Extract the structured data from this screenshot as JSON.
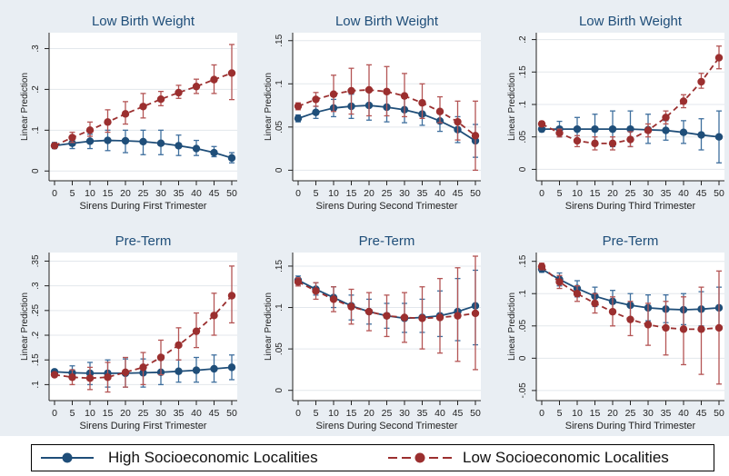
{
  "colors": {
    "high": "#1f4e79",
    "low": "#9b2f2f",
    "title": "#1f4e79",
    "background": "#e9eef3",
    "ci_high": "#3f6f9e",
    "ci_low": "#b45555"
  },
  "legend": {
    "high_label": "High Socioeconomic Localities",
    "low_label": "Low Socioeconomic Localities"
  },
  "chart_data": [
    {
      "type": "line",
      "title": "Low Birth Weight",
      "xlabel": "Sirens During First Trimester",
      "ylabel": "Linear Prediction",
      "x": [
        0,
        5,
        10,
        15,
        20,
        25,
        30,
        35,
        40,
        45,
        50
      ],
      "ylim": [
        -0.015,
        0.33
      ],
      "yticks": [
        0,
        0.1,
        0.2,
        0.3
      ],
      "ytick_labels": [
        "0",
        ".1",
        ".2",
        ".3"
      ],
      "series": [
        {
          "name": "High Socioeconomic Localities",
          "values": [
            0.062,
            0.068,
            0.073,
            0.075,
            0.074,
            0.072,
            0.068,
            0.062,
            0.055,
            0.045,
            0.032
          ],
          "lower": [
            0.055,
            0.055,
            0.055,
            0.05,
            0.045,
            0.04,
            0.04,
            0.038,
            0.038,
            0.035,
            0.02
          ],
          "upper": [
            0.07,
            0.08,
            0.09,
            0.1,
            0.1,
            0.1,
            0.1,
            0.088,
            0.075,
            0.06,
            0.045
          ]
        },
        {
          "name": "Low Socioeconomic Localities",
          "values": [
            0.062,
            0.082,
            0.1,
            0.12,
            0.14,
            0.158,
            0.176,
            0.192,
            0.207,
            0.224,
            0.24
          ],
          "lower": [
            0.058,
            0.07,
            0.085,
            0.095,
            0.115,
            0.13,
            0.16,
            0.178,
            0.19,
            0.19,
            0.175
          ],
          "upper": [
            0.066,
            0.095,
            0.12,
            0.15,
            0.17,
            0.19,
            0.195,
            0.21,
            0.225,
            0.26,
            0.31
          ]
        }
      ]
    },
    {
      "type": "line",
      "title": "Low Birth Weight",
      "xlabel": "Sirens During Second Trimester",
      "ylabel": "Linear Prediction",
      "x": [
        0,
        5,
        10,
        15,
        20,
        25,
        30,
        35,
        40,
        45,
        50
      ],
      "ylim": [
        -0.008,
        0.155
      ],
      "yticks": [
        0,
        0.05,
        0.1,
        0.15
      ],
      "ytick_labels": [
        "0",
        ".05",
        ".1",
        ".15"
      ],
      "series": [
        {
          "name": "High Socioeconomic Localities",
          "values": [
            0.06,
            0.067,
            0.072,
            0.074,
            0.075,
            0.073,
            0.07,
            0.065,
            0.057,
            0.047,
            0.034
          ],
          "lower": [
            0.056,
            0.06,
            0.062,
            0.06,
            0.058,
            0.056,
            0.055,
            0.052,
            0.045,
            0.032,
            0.015
          ],
          "upper": [
            0.064,
            0.074,
            0.082,
            0.088,
            0.092,
            0.09,
            0.085,
            0.078,
            0.068,
            0.062,
            0.053
          ]
        },
        {
          "name": "Low Socioeconomic Localities",
          "values": [
            0.074,
            0.082,
            0.088,
            0.092,
            0.093,
            0.091,
            0.086,
            0.078,
            0.068,
            0.056,
            0.04
          ],
          "lower": [
            0.07,
            0.074,
            0.068,
            0.065,
            0.063,
            0.063,
            0.062,
            0.06,
            0.055,
            0.035,
            0.0
          ],
          "upper": [
            0.078,
            0.09,
            0.11,
            0.118,
            0.122,
            0.12,
            0.112,
            0.1,
            0.085,
            0.08,
            0.08
          ]
        }
      ]
    },
    {
      "type": "line",
      "title": "Low Birth Weight",
      "xlabel": "Sirens During Third Trimester",
      "ylabel": "Linear Prediction",
      "x": [
        0,
        5,
        10,
        15,
        20,
        25,
        30,
        35,
        40,
        45,
        50
      ],
      "ylim": [
        -0.012,
        0.205
      ],
      "yticks": [
        0,
        0.05,
        0.1,
        0.15,
        0.2
      ],
      "ytick_labels": [
        "0",
        ".05",
        ".1",
        ".15",
        ".2"
      ],
      "series": [
        {
          "name": "High Socioeconomic Localities",
          "values": [
            0.062,
            0.062,
            0.062,
            0.062,
            0.062,
            0.062,
            0.061,
            0.06,
            0.057,
            0.053,
            0.05
          ],
          "lower": [
            0.058,
            0.05,
            0.045,
            0.04,
            0.035,
            0.035,
            0.04,
            0.045,
            0.04,
            0.03,
            0.01
          ],
          "upper": [
            0.066,
            0.074,
            0.08,
            0.085,
            0.09,
            0.09,
            0.085,
            0.075,
            0.075,
            0.078,
            0.09
          ]
        },
        {
          "name": "Low Socioeconomic Localities",
          "values": [
            0.07,
            0.056,
            0.044,
            0.04,
            0.04,
            0.046,
            0.06,
            0.08,
            0.105,
            0.135,
            0.172
          ],
          "lower": [
            0.066,
            0.05,
            0.035,
            0.03,
            0.03,
            0.035,
            0.05,
            0.07,
            0.095,
            0.125,
            0.155
          ],
          "upper": [
            0.074,
            0.062,
            0.052,
            0.05,
            0.05,
            0.058,
            0.07,
            0.09,
            0.115,
            0.148,
            0.19
          ]
        }
      ]
    },
    {
      "type": "line",
      "title": "Pre-Term",
      "xlabel": "Sirens During First Trimester",
      "ylabel": "Linear Prediction",
      "x": [
        0,
        5,
        10,
        15,
        20,
        25,
        30,
        35,
        40,
        45,
        50
      ],
      "ylim": [
        0.075,
        0.36
      ],
      "yticks": [
        0.1,
        0.15,
        0.2,
        0.25,
        0.3,
        0.35
      ],
      "ytick_labels": [
        ".1",
        ".15",
        ".2",
        ".25",
        ".3",
        ".35"
      ],
      "series": [
        {
          "name": "High Socioeconomic Localities",
          "values": [
            0.126,
            0.124,
            0.123,
            0.123,
            0.123,
            0.124,
            0.125,
            0.127,
            0.129,
            0.132,
            0.135
          ],
          "lower": [
            0.122,
            0.11,
            0.1,
            0.095,
            0.095,
            0.095,
            0.1,
            0.105,
            0.105,
            0.105,
            0.11
          ],
          "upper": [
            0.13,
            0.138,
            0.145,
            0.15,
            0.152,
            0.152,
            0.15,
            0.15,
            0.155,
            0.16,
            0.16
          ]
        },
        {
          "name": "Low Socioeconomic Localities",
          "values": [
            0.12,
            0.115,
            0.113,
            0.115,
            0.125,
            0.135,
            0.155,
            0.18,
            0.208,
            0.24,
            0.28
          ],
          "lower": [
            0.116,
            0.1,
            0.09,
            0.085,
            0.095,
            0.1,
            0.12,
            0.15,
            0.175,
            0.2,
            0.225
          ],
          "upper": [
            0.124,
            0.13,
            0.135,
            0.145,
            0.155,
            0.165,
            0.19,
            0.215,
            0.245,
            0.285,
            0.34
          ]
        }
      ]
    },
    {
      "type": "line",
      "title": "Pre-Term",
      "xlabel": "Sirens During Second Trimester",
      "ylabel": "Linear Prediction",
      "x": [
        0,
        5,
        10,
        15,
        20,
        25,
        30,
        35,
        40,
        45,
        50
      ],
      "ylim": [
        -0.008,
        0.162
      ],
      "yticks": [
        0,
        0.05,
        0.1,
        0.15
      ],
      "ytick_labels": [
        "0",
        ".05",
        ".1",
        ".15"
      ],
      "series": [
        {
          "name": "High Socioeconomic Localities",
          "values": [
            0.133,
            0.122,
            0.112,
            0.102,
            0.095,
            0.09,
            0.087,
            0.088,
            0.09,
            0.095,
            0.102
          ],
          "lower": [
            0.128,
            0.115,
            0.1,
            0.085,
            0.08,
            0.075,
            0.07,
            0.07,
            0.065,
            0.06,
            0.055
          ],
          "upper": [
            0.138,
            0.13,
            0.125,
            0.115,
            0.11,
            0.105,
            0.105,
            0.11,
            0.12,
            0.135,
            0.145
          ]
        },
        {
          "name": "Low Socioeconomic Localities",
          "values": [
            0.131,
            0.12,
            0.11,
            0.101,
            0.095,
            0.09,
            0.088,
            0.087,
            0.088,
            0.09,
            0.093
          ],
          "lower": [
            0.126,
            0.11,
            0.095,
            0.08,
            0.072,
            0.065,
            0.058,
            0.05,
            0.045,
            0.035,
            0.025
          ],
          "upper": [
            0.136,
            0.13,
            0.125,
            0.122,
            0.118,
            0.115,
            0.118,
            0.125,
            0.135,
            0.148,
            0.162
          ]
        }
      ]
    },
    {
      "type": "line",
      "title": "Pre-Term",
      "xlabel": "Sirens During Third Trimester",
      "ylabel": "Linear Prediction",
      "x": [
        0,
        5,
        10,
        15,
        20,
        25,
        30,
        35,
        40,
        45,
        50
      ],
      "ylim": [
        -0.06,
        0.158
      ],
      "yticks": [
        -0.05,
        0,
        0.05,
        0.1,
        0.15
      ],
      "ytick_labels": [
        "-.05",
        "0",
        ".05",
        ".1",
        ".15"
      ],
      "series": [
        {
          "name": "High Socioeconomic Localities",
          "values": [
            0.138,
            0.122,
            0.108,
            0.096,
            0.088,
            0.082,
            0.078,
            0.076,
            0.075,
            0.076,
            0.078
          ],
          "lower": [
            0.133,
            0.112,
            0.095,
            0.08,
            0.07,
            0.062,
            0.058,
            0.055,
            0.052,
            0.05,
            0.045
          ],
          "upper": [
            0.143,
            0.132,
            0.12,
            0.11,
            0.105,
            0.1,
            0.098,
            0.098,
            0.1,
            0.103,
            0.11
          ]
        },
        {
          "name": "Low Socioeconomic Localities",
          "values": [
            0.142,
            0.118,
            0.1,
            0.085,
            0.072,
            0.06,
            0.052,
            0.047,
            0.045,
            0.045,
            0.047
          ],
          "lower": [
            0.137,
            0.108,
            0.088,
            0.07,
            0.05,
            0.035,
            0.02,
            0.005,
            -0.01,
            -0.025,
            -0.04
          ],
          "upper": [
            0.147,
            0.128,
            0.112,
            0.1,
            0.095,
            0.088,
            0.085,
            0.088,
            0.095,
            0.11,
            0.135
          ]
        }
      ]
    }
  ]
}
